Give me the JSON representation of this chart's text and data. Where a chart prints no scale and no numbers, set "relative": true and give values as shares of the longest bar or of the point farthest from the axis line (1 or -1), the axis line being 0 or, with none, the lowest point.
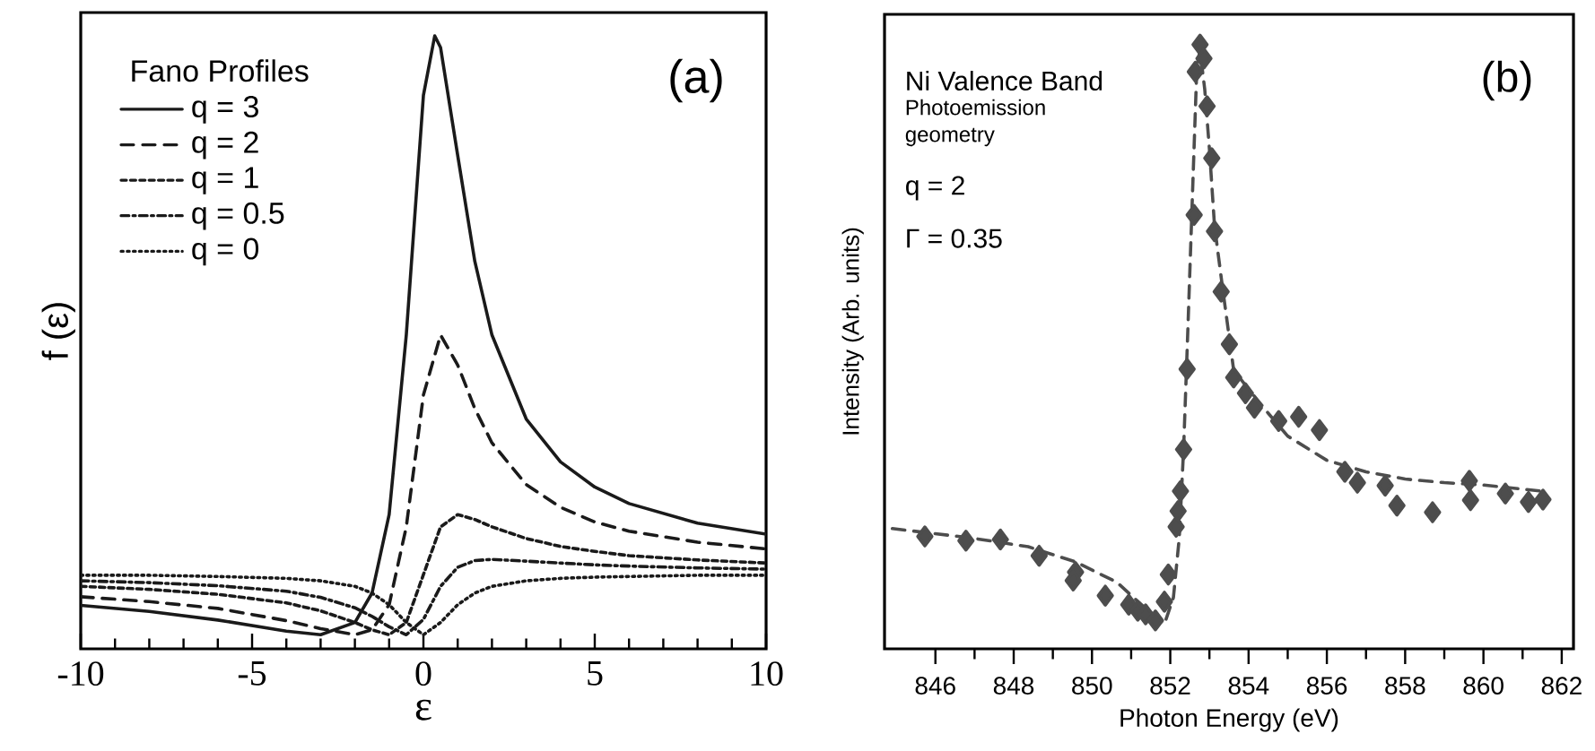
{
  "chart_data": [
    {
      "type": "line",
      "xlabel": "ε",
      "ylabel": "f (ε)",
      "legend_title": "Fano Profiles",
      "legend": "top left",
      "relative": true,
      "xlim": [
        -10,
        10
      ],
      "xticks": [
        -10,
        -5,
        0,
        5,
        10
      ],
      "annotations": [
        "(a)"
      ],
      "series": [
        {
          "name": "q = 3",
          "color": "#1a1a1a",
          "line_style": "solid",
          "x": [
            -10,
            -8,
            -6,
            -4,
            -3,
            -2,
            -1.5,
            -1,
            -0.5,
            0,
            0.33,
            0.5,
            1,
            1.5,
            2,
            3,
            4,
            5,
            6,
            8,
            10
          ],
          "values": [
            0.071,
            0.061,
            0.047,
            0.029,
            0.023,
            0.043,
            0.091,
            0.219,
            0.512,
            0.903,
            1.0,
            0.981,
            0.805,
            0.632,
            0.512,
            0.375,
            0.305,
            0.264,
            0.237,
            0.205,
            0.187
          ]
        },
        {
          "name": "q = 2",
          "color": "#1a1a1a",
          "line_style": "dashed",
          "x": [
            -10,
            -8,
            -6,
            -4,
            -3,
            -2,
            -1.5,
            -1,
            -0.5,
            0,
            0.5,
            1,
            1.5,
            2,
            3,
            4,
            5,
            6,
            8,
            10
          ],
          "values": [
            0.085,
            0.077,
            0.066,
            0.046,
            0.033,
            0.023,
            0.031,
            0.072,
            0.199,
            0.414,
            0.512,
            0.463,
            0.392,
            0.336,
            0.268,
            0.231,
            0.207,
            0.192,
            0.174,
            0.163
          ]
        },
        {
          "name": "q = 1",
          "color": "#1a1a1a",
          "line_style": "densely dashed",
          "x": [
            -10,
            -8,
            -6,
            -4,
            -3,
            -2,
            -1.5,
            -1,
            -0.5,
            0,
            0.5,
            1,
            1.5,
            2,
            3,
            4,
            5,
            6,
            8,
            10
          ],
          "values": [
            0.102,
            0.097,
            0.089,
            0.075,
            0.062,
            0.043,
            0.031,
            0.023,
            0.043,
            0.121,
            0.199,
            0.219,
            0.211,
            0.199,
            0.18,
            0.167,
            0.159,
            0.152,
            0.145,
            0.14
          ]
        },
        {
          "name": "q = 0.5",
          "color": "#1a1a1a",
          "line_style": "dashdotted",
          "x": [
            -10,
            -8,
            -6,
            -4,
            -3,
            -2,
            -1.5,
            -1,
            -0.5,
            0,
            0.5,
            1,
            1.5,
            2,
            3,
            4,
            5,
            6,
            8,
            10
          ],
          "values": [
            0.111,
            0.108,
            0.103,
            0.094,
            0.084,
            0.067,
            0.053,
            0.036,
            0.023,
            0.048,
            0.102,
            0.133,
            0.144,
            0.146,
            0.143,
            0.14,
            0.137,
            0.135,
            0.132,
            0.13
          ]
        },
        {
          "name": "q = 0",
          "color": "#1a1a1a",
          "line_style": "dotted",
          "x": [
            -10,
            -8,
            -6,
            -4,
            -3,
            -2,
            -1.5,
            -1,
            -0.5,
            0,
            0.5,
            1,
            1.5,
            2,
            3,
            4,
            5,
            6,
            8,
            10
          ],
          "values": [
            0.12,
            0.12,
            0.118,
            0.115,
            0.111,
            0.102,
            0.091,
            0.072,
            0.043,
            0.023,
            0.043,
            0.072,
            0.091,
            0.102,
            0.111,
            0.115,
            0.117,
            0.118,
            0.12,
            0.12
          ]
        }
      ]
    },
    {
      "type": "scatter",
      "xlabel": "Photon Energy (eV)",
      "ylabel": "Intensity (Arb. units)",
      "relative": true,
      "marker": "diamond",
      "xlim": [
        844.7,
        862.3
      ],
      "xticks": [
        846,
        848,
        850,
        852,
        854,
        856,
        858,
        860,
        862
      ],
      "annotations": [
        "(b)",
        "Ni Valence Band",
        "Photoemission geometry",
        "q = 2",
        "Γ = 0.35"
      ],
      "series": [
        {
          "color": "#4d4d4d",
          "x": [
            845.73,
            846.78,
            847.66,
            848.65,
            849.58,
            849.52,
            850.34,
            850.94,
            851.17,
            851.37,
            851.62,
            851.85,
            851.95,
            852.15,
            852.2,
            852.26,
            852.34,
            852.43,
            852.61,
            852.64,
            852.76,
            852.86,
            852.94,
            853.06,
            853.13,
            853.3,
            853.51,
            853.62,
            853.92,
            854.15,
            854.65,
            854.77,
            855.28,
            855.81,
            856.46,
            856.78,
            857.49,
            857.79,
            858.7,
            859.64,
            859.67,
            860.56,
            861.15,
            861.52
          ],
          "values": [
            0.186,
            0.179,
            0.181,
            0.154,
            0.127,
            0.113,
            0.088,
            0.073,
            0.063,
            0.057,
            0.047,
            0.078,
            0.123,
            0.202,
            0.228,
            0.261,
            0.33,
            0.463,
            0.718,
            0.955,
            1.0,
            0.977,
            0.898,
            0.812,
            0.691,
            0.591,
            0.504,
            0.449,
            0.423,
            0.399,
            null,
            0.377,
            0.384,
            0.362,
            0.293,
            0.275,
            0.27,
            0.237,
            0.226,
            0.278,
            0.246,
            0.257,
            0.243,
            0.247
          ]
        },
        {
          "type": "line",
          "marker": "none",
          "line_style": "dashed",
          "color": "#4d4d4d",
          "x": [
            844.9,
            846.86,
            848.37,
            849.58,
            850.64,
            851.4,
            851.85,
            852.08,
            852.23,
            852.34,
            852.45,
            852.58,
            852.68,
            852.76,
            852.88,
            853.0,
            853.13,
            853.33,
            853.62,
            854.0,
            854.5,
            855.0,
            856.0,
            857.0,
            858.0,
            859.0,
            860.0,
            861.5
          ],
          "values": [
            0.199,
            0.184,
            0.169,
            0.144,
            0.11,
            0.065,
            0.041,
            0.085,
            0.184,
            0.33,
            0.53,
            0.777,
            0.965,
            0.99,
            0.926,
            0.827,
            0.7,
            0.6,
            0.461,
            0.43,
            0.39,
            0.352,
            0.312,
            0.293,
            0.281,
            0.275,
            0.271,
            0.261
          ]
        }
      ]
    }
  ]
}
